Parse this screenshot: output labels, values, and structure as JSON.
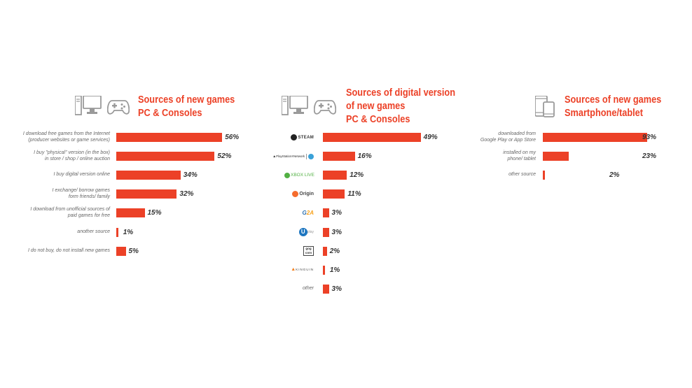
{
  "chart_data": [
    {
      "type": "bar",
      "title": [
        "Sources of new games",
        "PC & Consoles"
      ],
      "categories": [
        [
          "I download free games from the Internet",
          "(producer websites  or game services)"
        ],
        [
          "I buy  \"physical\" version (in the box)",
          "in store / shop / online auction"
        ],
        [
          "I buy digital version online"
        ],
        [
          "I exchange/ borrow games",
          "form friends/ family"
        ],
        [
          "I download from  unofficial sources of",
          "paid games for free"
        ],
        [
          "another source"
        ],
        [
          "I do not buy, do not install new games"
        ]
      ],
      "values": [
        56,
        52,
        34,
        32,
        15,
        1,
        5
      ],
      "value_labels": [
        "56%",
        "52%",
        "34%",
        "32%",
        "15%",
        "1%",
        "5%"
      ],
      "icons": [
        "desktop-pc-icon",
        "gamepad-icon"
      ]
    },
    {
      "type": "bar",
      "title": [
        "Sources of digital version",
        "of new games",
        "PC & Consoles"
      ],
      "categories": [
        "STEAM",
        "PlayStation Network",
        "XBOX LIVE",
        "Origin",
        "G2A",
        "Uplay",
        "GOG.com",
        "KINGUIN",
        "other"
      ],
      "category_logos": [
        "steam-logo",
        "playstation-network-logo",
        "xbox-live-logo",
        "origin-logo",
        "g2a-logo",
        "uplay-logo",
        "gog-logo",
        "kinguin-logo",
        null
      ],
      "values": [
        49,
        16,
        12,
        11,
        3,
        3,
        2,
        1,
        3
      ],
      "value_labels": [
        "49%",
        "16%",
        "12%",
        "11%",
        "3%",
        "3%",
        "2%",
        "1%",
        "3%"
      ],
      "icons": [
        "desktop-pc-icon",
        "gamepad-icon"
      ]
    },
    {
      "type": "bar",
      "title": [
        "Sources of new games",
        "Smartphone/tablet"
      ],
      "categories": [
        [
          "downloaded from",
          "Google Play or App Store"
        ],
        [
          "installed on my",
          "phone/ tablet"
        ],
        [
          "other source"
        ]
      ],
      "values": [
        93,
        23,
        2
      ],
      "value_labels": [
        "93%",
        "23%",
        "2%"
      ],
      "icons": [
        "smartphone-tablet-icon"
      ]
    }
  ],
  "colors": {
    "bar": "#ec4127",
    "title": "#ec4127",
    "icon": "#9a9a9a",
    "label": "#666666",
    "value": "#333333"
  }
}
